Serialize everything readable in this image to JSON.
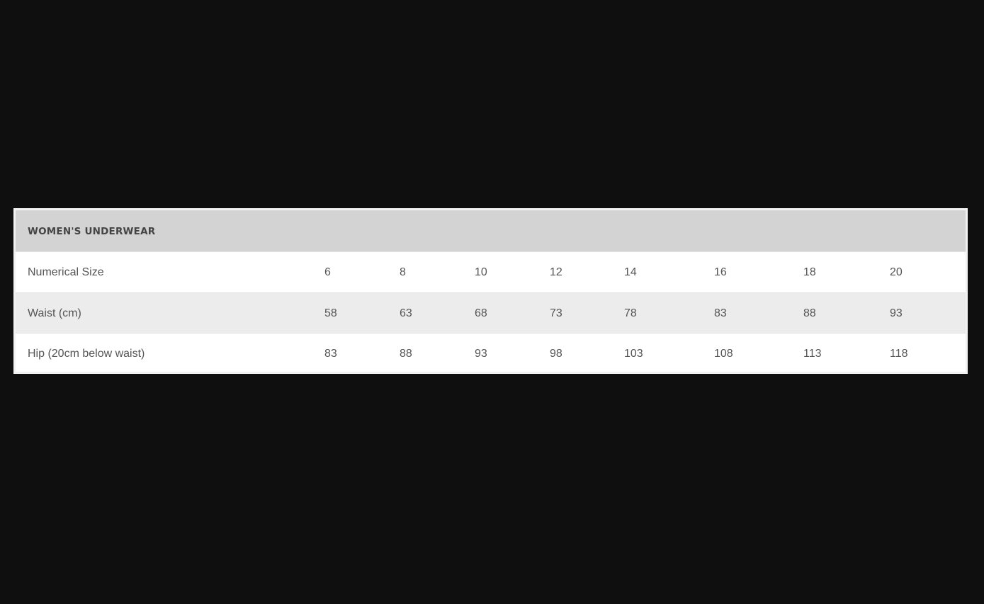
{
  "table": {
    "title": "WOMEN'S UNDERWEAR",
    "rows": [
      {
        "label": "Numerical Size",
        "values": [
          "6",
          "8",
          "10",
          "12",
          "14",
          "16",
          "18",
          "20"
        ]
      },
      {
        "label": "Waist (cm)",
        "values": [
          "58",
          "63",
          "68",
          "73",
          "78",
          "83",
          "88",
          "93"
        ]
      },
      {
        "label": "Hip (20cm below waist)",
        "values": [
          "83",
          "88",
          "93",
          "98",
          "103",
          "108",
          "113",
          "118"
        ]
      }
    ]
  }
}
